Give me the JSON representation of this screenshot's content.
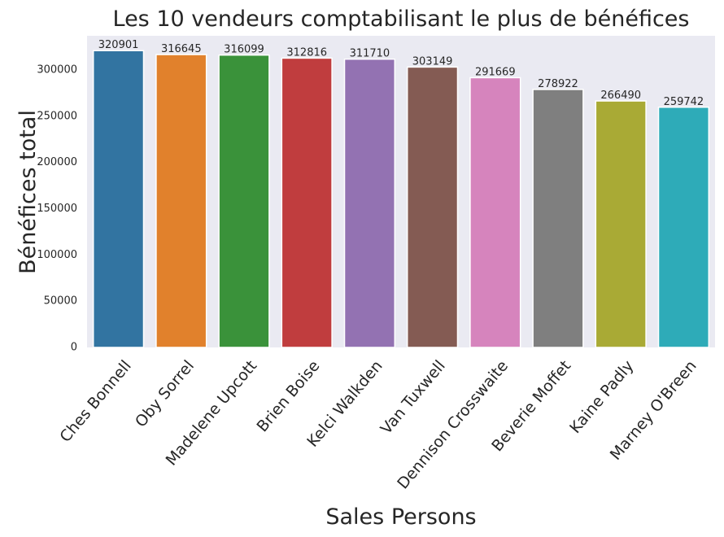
{
  "chart_data": {
    "type": "bar",
    "title": "Les 10 vendeurs comptabilisant le plus de bénéfices",
    "xlabel": "Sales Persons",
    "ylabel": "Bénéfices total",
    "categories": [
      "Ches Bonnell",
      "Oby Sorrel",
      "Madelene Upcott",
      "Brien Boise",
      "Kelci Walkden",
      "Van Tuxwell",
      "Dennison Crosswaite",
      "Beverie Moffet",
      "Kaine Padly",
      "Marney O'Breen"
    ],
    "values": [
      320901,
      316645,
      316099,
      312816,
      311710,
      303149,
      291669,
      278922,
      266490,
      259742
    ],
    "colors": [
      "#3274a1",
      "#e1812c",
      "#3a923a",
      "#c03d3e",
      "#9372b2",
      "#845b53",
      "#d684bd",
      "#7f7f7f",
      "#a9aa35",
      "#2eabb8"
    ],
    "yticks": [
      0,
      50000,
      100000,
      150000,
      200000,
      250000,
      300000
    ],
    "ylim": [
      0,
      336946
    ],
    "grid": false,
    "background": "#eaeaf2"
  }
}
